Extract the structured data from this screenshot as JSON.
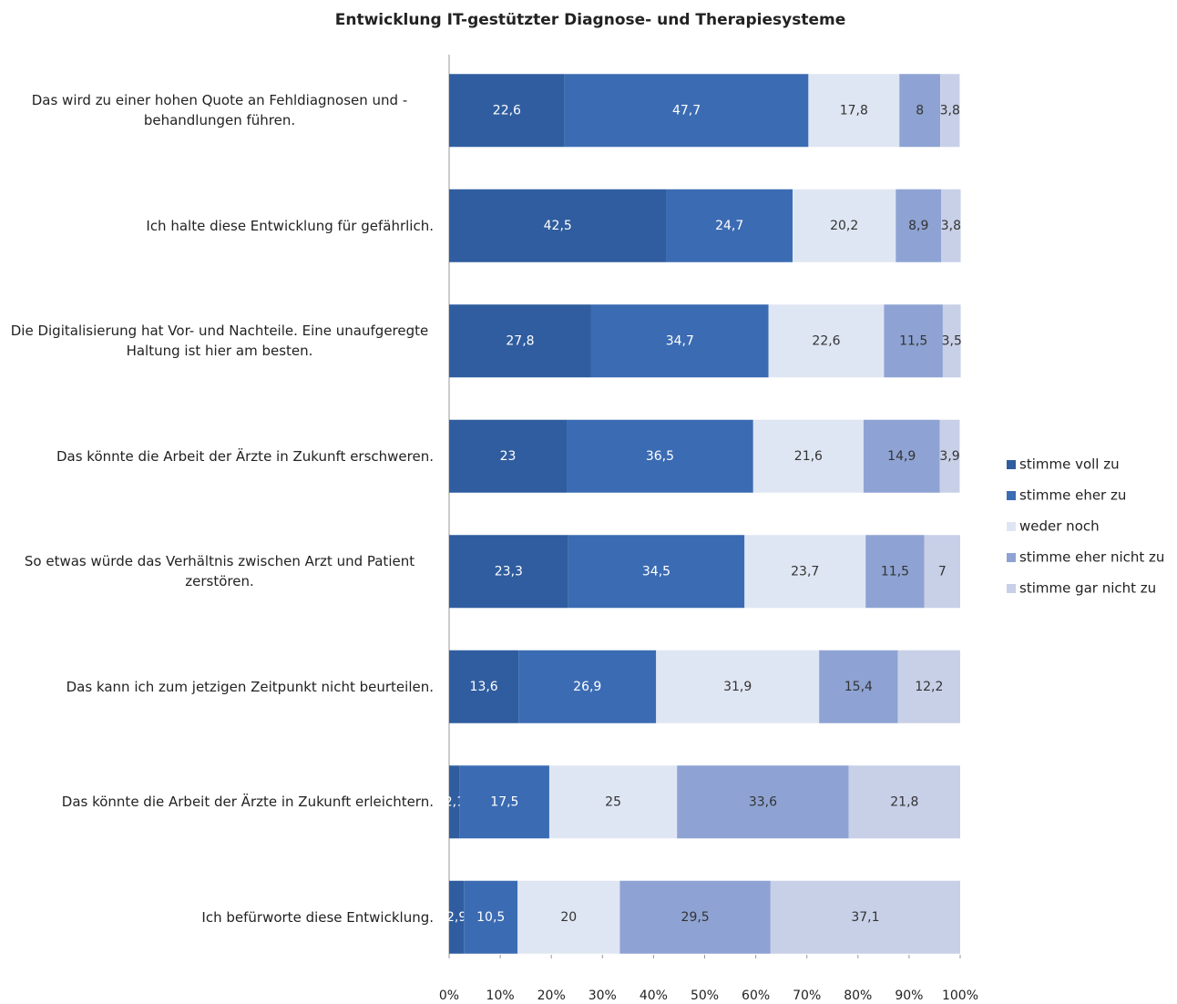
{
  "chart_data": {
    "type": "stacked_bar_horizontal",
    "title": "Entwicklung IT-gestützter Diagnose- und Therapiesysteme",
    "categories": [
      "Das wird zu einer hohen Quote an Fehldiagnosen und -behandlungen führen.",
      "Ich halte diese Entwicklung für gefährlich.",
      "Die Digitalisierung hat Vor- und Nachteile. Eine unaufgeregte Haltung ist hier am besten.",
      "Das könnte die Arbeit der Ärzte in Zukunft erschweren.",
      "So etwas würde das Verhältnis zwischen Arzt und Patient zerstören.",
      "Das kann ich zum jetzigen Zeitpunkt nicht beurteilen.",
      "Das könnte die Arbeit der Ärzte in Zukunft erleichtern.",
      "Ich befürworte diese Entwicklung."
    ],
    "series": [
      {
        "name": "stimme voll zu",
        "color": "#2f5d9f",
        "values": [
          22.6,
          42.5,
          27.8,
          23,
          23.3,
          13.6,
          2.1,
          2.9
        ],
        "value_labels": [
          "22,6",
          "42,5",
          "27,8",
          "23",
          "23,3",
          "13,6",
          "2,1",
          "2,9"
        ]
      },
      {
        "name": "stimme eher zu",
        "color": "#3b6bb3",
        "values": [
          47.7,
          24.7,
          34.7,
          36.5,
          34.5,
          26.9,
          17.5,
          10.5
        ],
        "value_labels": [
          "47,7",
          "24,7",
          "34,7",
          "36,5",
          "34,5",
          "26,9",
          "17,5",
          "10,5"
        ]
      },
      {
        "name": "weder noch",
        "color": "#dfe6f3",
        "values": [
          17.8,
          20.2,
          22.6,
          21.6,
          23.7,
          31.9,
          25,
          20
        ],
        "value_labels": [
          "17,8",
          "20,2",
          "22,6",
          "21,6",
          "23,7",
          "31,9",
          "25",
          "20"
        ]
      },
      {
        "name": "stimme eher nicht zu",
        "color": "#8ea3d3",
        "values": [
          8,
          8.9,
          11.5,
          14.9,
          11.5,
          15.4,
          33.6,
          29.5
        ],
        "value_labels": [
          "8",
          "8,9",
          "11,5",
          "14,9",
          "11,5",
          "15,4",
          "33,6",
          "29,5"
        ]
      },
      {
        "name": "stimme gar nicht zu",
        "color": "#c8d0e8",
        "values": [
          3.8,
          3.8,
          3.5,
          3.9,
          7,
          12.2,
          21.8,
          37.1
        ],
        "value_labels": [
          "3,8",
          "3,8",
          "3,5",
          "3,9",
          "7",
          "12,2",
          "21,8",
          "37,1"
        ]
      }
    ],
    "xlim": [
      0,
      100
    ],
    "xticks": [
      {
        "value": 0,
        "label": "0%"
      },
      {
        "value": 10,
        "label": "10%"
      },
      {
        "value": 20,
        "label": "20%"
      },
      {
        "value": 30,
        "label": "30%"
      },
      {
        "value": 40,
        "label": "40%"
      },
      {
        "value": 50,
        "label": "50%"
      },
      {
        "value": 60,
        "label": "60%"
      },
      {
        "value": 70,
        "label": "70%"
      },
      {
        "value": 80,
        "label": "80%"
      },
      {
        "value": 90,
        "label": "90%"
      },
      {
        "value": 100,
        "label": "100%"
      }
    ],
    "legend": "right"
  }
}
